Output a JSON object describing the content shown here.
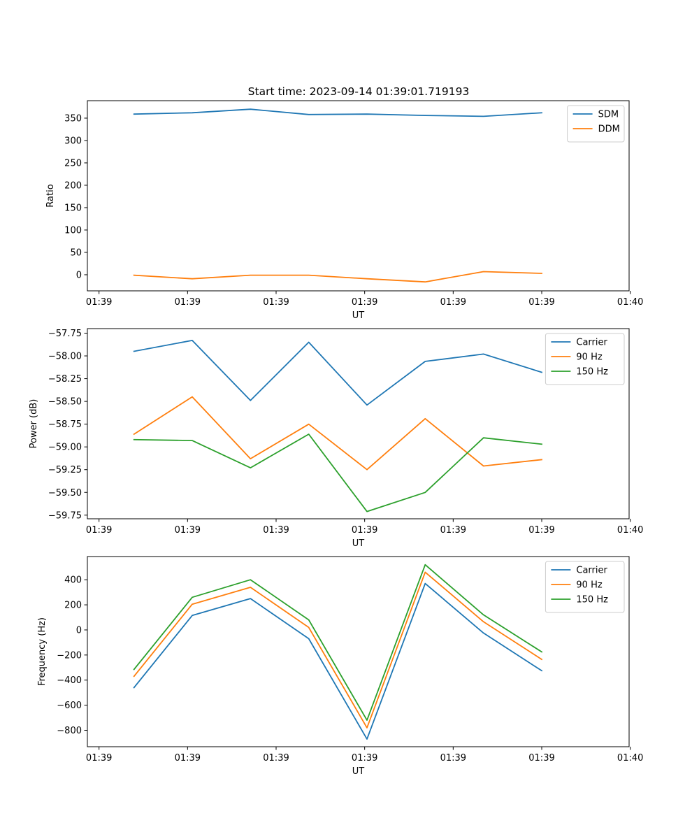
{
  "figure_title": "Start time: 2023-09-14 01:39:01.719193",
  "colors": {
    "blue": "#1f77b4",
    "orange": "#ff7f0e",
    "green": "#2ca02c"
  },
  "chart_data": [
    {
      "type": "line",
      "title": "Start time: 2023-09-14 01:39:01.719193",
      "xlabel": "UT",
      "ylabel": "Ratio",
      "x": [
        1,
        2,
        3,
        4,
        5,
        6,
        7,
        8
      ],
      "xlim": [
        0.2,
        9.5
      ],
      "xticks": [
        0.4,
        1.92,
        3.44,
        4.96,
        6.48,
        8.0,
        9.52
      ],
      "xtick_labels": [
        "01:39",
        "01:39",
        "01:39",
        "01:39",
        "01:39",
        "01:39",
        "01:40"
      ],
      "ylim": [
        -36,
        389
      ],
      "yticks": [
        0,
        50,
        100,
        150,
        200,
        250,
        300,
        350
      ],
      "ytick_labels": [
        "0",
        "50",
        "100",
        "150",
        "200",
        "250",
        "300",
        "350"
      ],
      "legend_loc": "upper right",
      "series": [
        {
          "name": "SDM",
          "color": "#1f77b4",
          "values": [
            359,
            362,
            370,
            358,
            359,
            356,
            354,
            362
          ]
        },
        {
          "name": "DDM",
          "color": "#ff7f0e",
          "values": [
            -1,
            -9,
            -1,
            -1,
            -9,
            -16,
            7,
            3
          ]
        }
      ]
    },
    {
      "type": "line",
      "title": "",
      "xlabel": "UT",
      "ylabel": "Power (dB)",
      "x": [
        1,
        2,
        3,
        4,
        5,
        6,
        7,
        8
      ],
      "xlim": [
        0.2,
        9.5
      ],
      "xticks": [
        0.4,
        1.92,
        3.44,
        4.96,
        6.48,
        8.0,
        9.52
      ],
      "xtick_labels": [
        "01:39",
        "01:39",
        "01:39",
        "01:39",
        "01:39",
        "01:39",
        "01:40"
      ],
      "ylim": [
        -59.79,
        -57.7
      ],
      "yticks": [
        -59.75,
        -59.5,
        -59.25,
        -59.0,
        -58.75,
        -58.5,
        -58.25,
        -58.0,
        -57.75
      ],
      "ytick_labels": [
        "−59.75",
        "−59.50",
        "−59.25",
        "−59.00",
        "−58.75",
        "−58.50",
        "−58.25",
        "−58.00",
        "−57.75"
      ],
      "legend_loc": "upper right",
      "series": [
        {
          "name": "Carrier",
          "color": "#1f77b4",
          "values": [
            -57.95,
            -57.83,
            -58.49,
            -57.85,
            -58.54,
            -58.06,
            -57.98,
            -58.18
          ]
        },
        {
          "name": "90 Hz",
          "color": "#ff7f0e",
          "values": [
            -58.86,
            -58.45,
            -59.13,
            -58.75,
            -59.25,
            -58.69,
            -59.21,
            -59.14
          ]
        },
        {
          "name": "150 Hz",
          "color": "#2ca02c",
          "values": [
            -58.92,
            -58.93,
            -59.23,
            -58.86,
            -59.71,
            -59.5,
            -58.9,
            -58.97
          ]
        }
      ]
    },
    {
      "type": "line",
      "title": "",
      "xlabel": "UT",
      "ylabel": "Frequency (Hz)",
      "x": [
        1,
        2,
        3,
        4,
        5,
        6,
        7,
        8
      ],
      "xlim": [
        0.2,
        9.5
      ],
      "xticks": [
        0.4,
        1.92,
        3.44,
        4.96,
        6.48,
        8.0,
        9.52
      ],
      "xtick_labels": [
        "01:39",
        "01:39",
        "01:39",
        "01:39",
        "01:39",
        "01:39",
        "01:40"
      ],
      "ylim": [
        -931,
        585
      ],
      "yticks": [
        -800,
        -600,
        -400,
        -200,
        0,
        200,
        400
      ],
      "ytick_labels": [
        "−800",
        "−600",
        "−400",
        "−200",
        "0",
        "200",
        "400"
      ],
      "legend_loc": "upper right",
      "series": [
        {
          "name": "Carrier",
          "color": "#1f77b4",
          "values": [
            -460,
            115,
            250,
            -70,
            -870,
            370,
            -25,
            -325
          ]
        },
        {
          "name": "90 Hz",
          "color": "#ff7f0e",
          "values": [
            -370,
            205,
            340,
            20,
            -780,
            460,
            65,
            -235
          ]
        },
        {
          "name": "150 Hz",
          "color": "#2ca02c",
          "values": [
            -315,
            260,
            400,
            80,
            -720,
            520,
            120,
            -175
          ]
        }
      ]
    }
  ]
}
